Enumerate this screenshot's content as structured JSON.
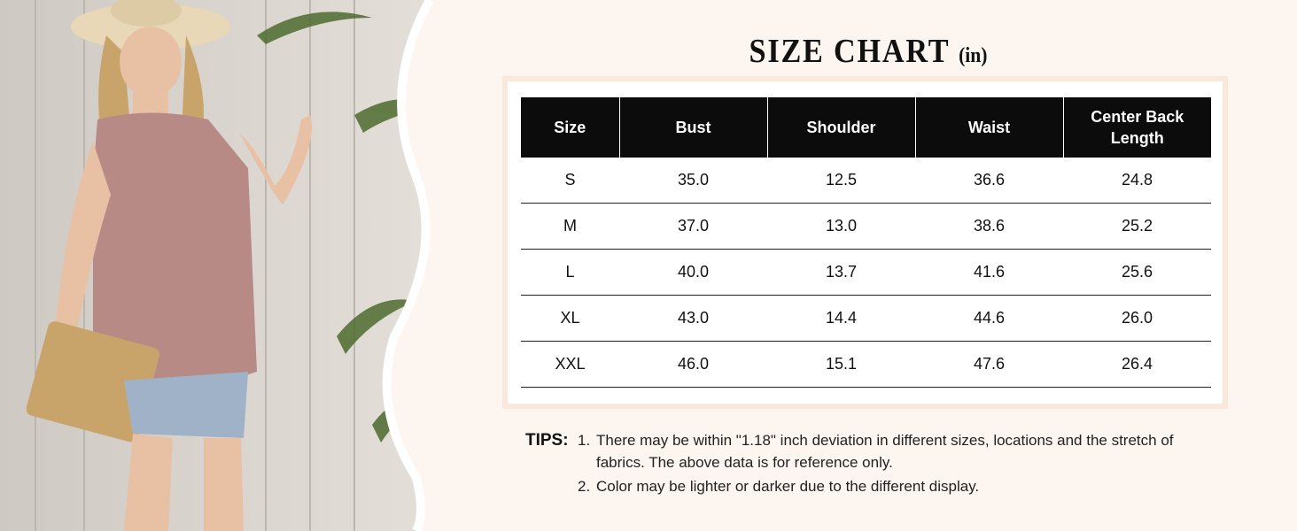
{
  "title": "SIZE CHART",
  "unit": "(in)",
  "table": {
    "headers": [
      "Size",
      "Bust",
      "Shoulder",
      "Waist",
      "Center Back Length"
    ],
    "rows": [
      [
        "S",
        "35.0",
        "12.5",
        "36.6",
        "24.8"
      ],
      [
        "M",
        "37.0",
        "13.0",
        "38.6",
        "25.2"
      ],
      [
        "L",
        "40.0",
        "13.7",
        "41.6",
        "25.6"
      ],
      [
        "XL",
        "43.0",
        "14.4",
        "44.6",
        "26.0"
      ],
      [
        "XXL",
        "46.0",
        "15.1",
        "47.6",
        "26.4"
      ]
    ]
  },
  "tips": {
    "label": "TIPS:",
    "items": [
      {
        "num": "1.",
        "line1": "There may be within \"1.18\" inch deviation in different sizes, locations and the stretch of",
        "line2": "fabrics. The above data is for reference only."
      },
      {
        "num": "2.",
        "line1": "Color may be lighter or darker due to the different display."
      }
    ]
  },
  "colors": {
    "background": "#fdf5f0",
    "frame_border": "#fbe8dc",
    "header_bg": "#0c0c0c",
    "top_color": "#b88a86"
  }
}
